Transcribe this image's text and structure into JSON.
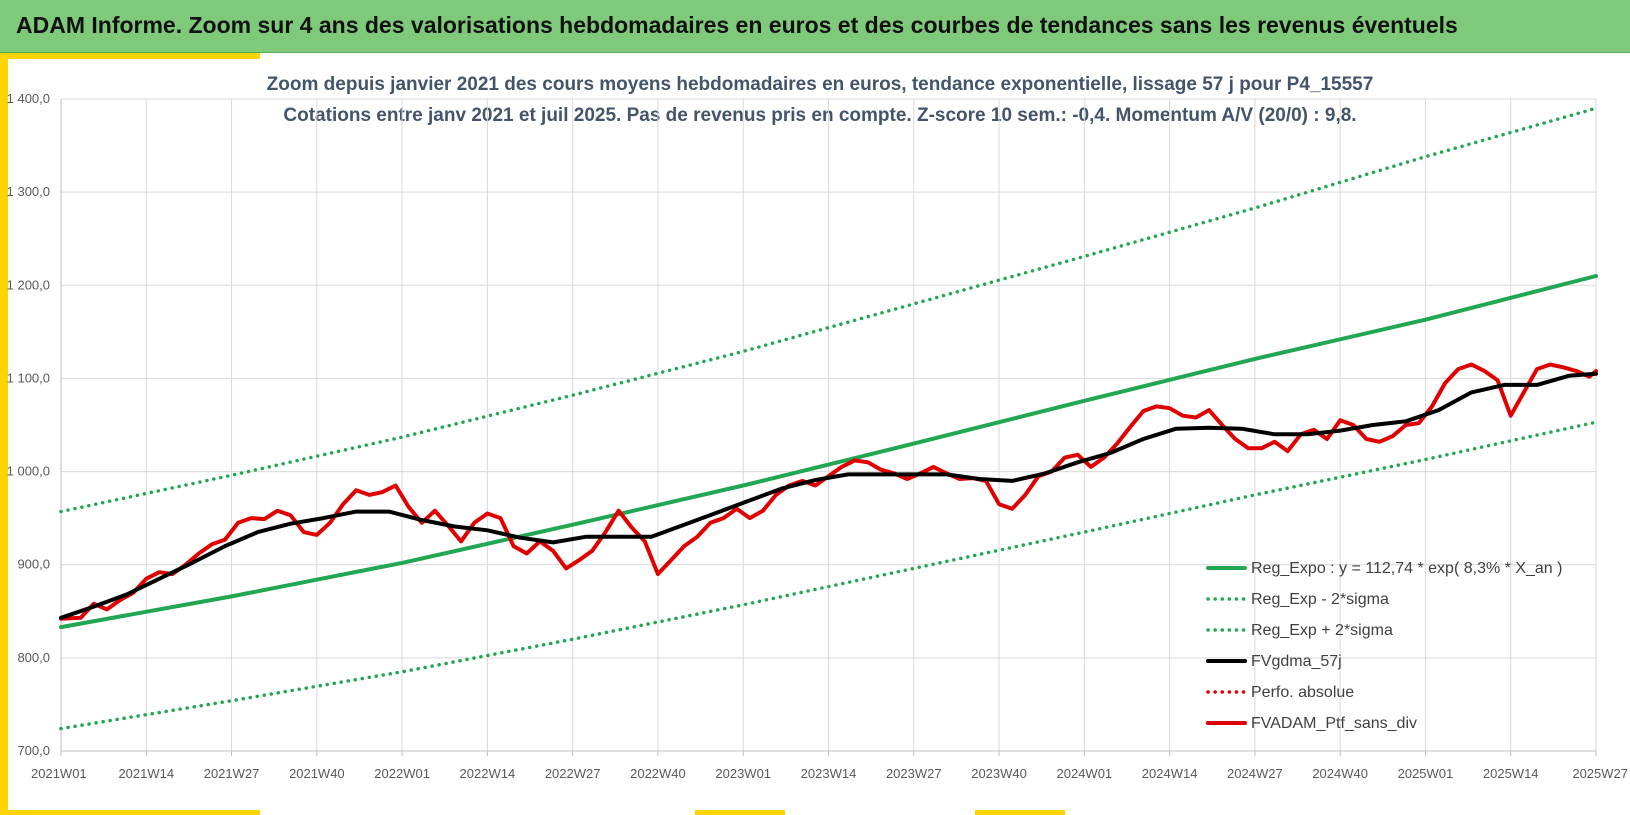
{
  "header": {
    "title": "ADAM Informe. Zoom sur 4 ans des valorisations hebdomadaires en euros et des courbes de tendances sans les revenus éventuels"
  },
  "chart_data": {
    "type": "line",
    "subtitle_line1": "Zoom depuis janvier 2021 des cours moyens hebdomadaires  en euros, tendance exponentielle, lissage 57 j pour P4_15557",
    "subtitle_line2": "Cotations  entre janv 2021 et juil 2025. Pas de revenus pris en compte. Z-score 10 sem.: -0,4. Momentum A/V (20/0) : 9,8.",
    "ylim": [
      700,
      1400
    ],
    "yticks": [
      "700,0",
      "800,0",
      "900,0",
      "1 000,0",
      "1 100,0",
      "1 200,0",
      "1 300,0",
      "1 400,0"
    ],
    "ytick_values": [
      700,
      800,
      900,
      1000,
      1100,
      1200,
      1300,
      1400
    ],
    "xlim": [
      0,
      234
    ],
    "xtick_labels": [
      "2021W01",
      "2021W14",
      "2021W27",
      "2021W40",
      "2022W01",
      "2022W14",
      "2022W27",
      "2022W40",
      "2023W01",
      "2023W14",
      "2023W27",
      "2023W40",
      "2024W01",
      "2024W14",
      "2024W27",
      "2024W40",
      "2025W01",
      "2025W14",
      "2025W27"
    ],
    "xtick_positions": [
      0,
      13,
      26,
      39,
      52,
      65,
      78,
      91,
      104,
      117,
      130,
      143,
      156,
      169,
      182,
      195,
      208,
      221,
      234
    ],
    "grid": true,
    "legend_position": "bottom-right",
    "series": [
      {
        "name": "Reg_Expo : y = 112,74 * exp( 8,3% *  X_an )",
        "style": "solid",
        "color": "#21a651",
        "x": [
          0,
          26,
          52,
          78,
          104,
          130,
          156,
          182,
          208,
          234
        ],
        "values": [
          833,
          866,
          902,
          943,
          985,
          1030,
          1076,
          1121,
          1163,
          1210
        ]
      },
      {
        "name": "Reg_Exp - 2*sigma",
        "style": "dotted",
        "color": "#21a651",
        "x": [
          0,
          26,
          52,
          78,
          104,
          130,
          156,
          182,
          208,
          234
        ],
        "values": [
          724,
          754,
          785,
          820,
          857,
          896,
          935,
          975,
          1013,
          1053
        ]
      },
      {
        "name": "Reg_Exp + 2*sigma",
        "style": "dotted",
        "color": "#21a651",
        "x": [
          0,
          26,
          52,
          78,
          104,
          130,
          156,
          182,
          208,
          234
        ],
        "values": [
          957,
          996,
          1037,
          1082,
          1129,
          1180,
          1231,
          1283,
          1338,
          1390
        ]
      },
      {
        "name": "FVgdma_57j",
        "style": "solid",
        "color": "#000000",
        "x": [
          0,
          5,
          10,
          15,
          20,
          25,
          30,
          35,
          40,
          45,
          50,
          55,
          60,
          65,
          70,
          75,
          80,
          85,
          90,
          95,
          100,
          105,
          110,
          115,
          120,
          125,
          130,
          135,
          140,
          145,
          150,
          155,
          160,
          165,
          170,
          175,
          180,
          185,
          190,
          195,
          200,
          205,
          210,
          215,
          220,
          225,
          230,
          234
        ],
        "values": [
          843,
          855,
          868,
          885,
          902,
          920,
          935,
          944,
          950,
          957,
          957,
          948,
          941,
          937,
          929,
          924,
          930,
          930,
          930,
          943,
          956,
          969,
          982,
          991,
          997,
          997,
          997,
          997,
          992,
          990,
          998,
          1010,
          1020,
          1035,
          1046,
          1047,
          1046,
          1040,
          1040,
          1044,
          1050,
          1054,
          1066,
          1085,
          1093,
          1093,
          1103,
          1105
        ]
      },
      {
        "name": "Perfo. absolue",
        "style": "dotted",
        "color": "#e00000",
        "x": [],
        "values": []
      },
      {
        "name": "FVADAM_Ptf_sans_div",
        "style": "solid",
        "color": "#e00000",
        "x": [
          0,
          3,
          5,
          7,
          9,
          11,
          13,
          15,
          17,
          19,
          21,
          23,
          25,
          27,
          29,
          31,
          33,
          35,
          37,
          39,
          41,
          43,
          45,
          47,
          49,
          51,
          53,
          55,
          57,
          59,
          61,
          63,
          65,
          67,
          69,
          71,
          73,
          75,
          77,
          79,
          81,
          83,
          85,
          87,
          89,
          91,
          93,
          95,
          97,
          99,
          101,
          103,
          105,
          107,
          109,
          111,
          113,
          115,
          117,
          119,
          121,
          123,
          125,
          127,
          129,
          131,
          133,
          135,
          137,
          139,
          141,
          143,
          145,
          147,
          149,
          151,
          153,
          155,
          157,
          159,
          161,
          163,
          165,
          167,
          169,
          171,
          173,
          175,
          177,
          179,
          181,
          183,
          185,
          187,
          189,
          191,
          193,
          195,
          197,
          199,
          201,
          203,
          205,
          207,
          209,
          211,
          213,
          215,
          217,
          219,
          221,
          223,
          225,
          227,
          229,
          231,
          233,
          234
        ],
        "values": [
          842,
          843,
          858,
          852,
          862,
          870,
          885,
          892,
          890,
          900,
          912,
          922,
          927,
          945,
          950,
          949,
          958,
          953,
          935,
          932,
          945,
          965,
          980,
          975,
          978,
          985,
          962,
          945,
          958,
          942,
          925,
          945,
          955,
          950,
          920,
          912,
          925,
          915,
          896,
          905,
          915,
          935,
          958,
          940,
          925,
          890,
          905,
          920,
          930,
          945,
          950,
          960,
          950,
          958,
          975,
          985,
          990,
          985,
          995,
          1005,
          1012,
          1010,
          1002,
          998,
          992,
          998,
          1005,
          998,
          992,
          993,
          990,
          965,
          960,
          975,
          995,
          1000,
          1015,
          1018,
          1005,
          1015,
          1030,
          1048,
          1065,
          1070,
          1068,
          1060,
          1058,
          1066,
          1050,
          1035,
          1025,
          1025,
          1032,
          1022,
          1040,
          1045,
          1035,
          1055,
          1050,
          1035,
          1032,
          1038,
          1050,
          1052,
          1070,
          1095,
          1110,
          1115,
          1108,
          1098,
          1060,
          1085,
          1110,
          1115,
          1112,
          1108,
          1102,
          1108
        ]
      }
    ]
  }
}
